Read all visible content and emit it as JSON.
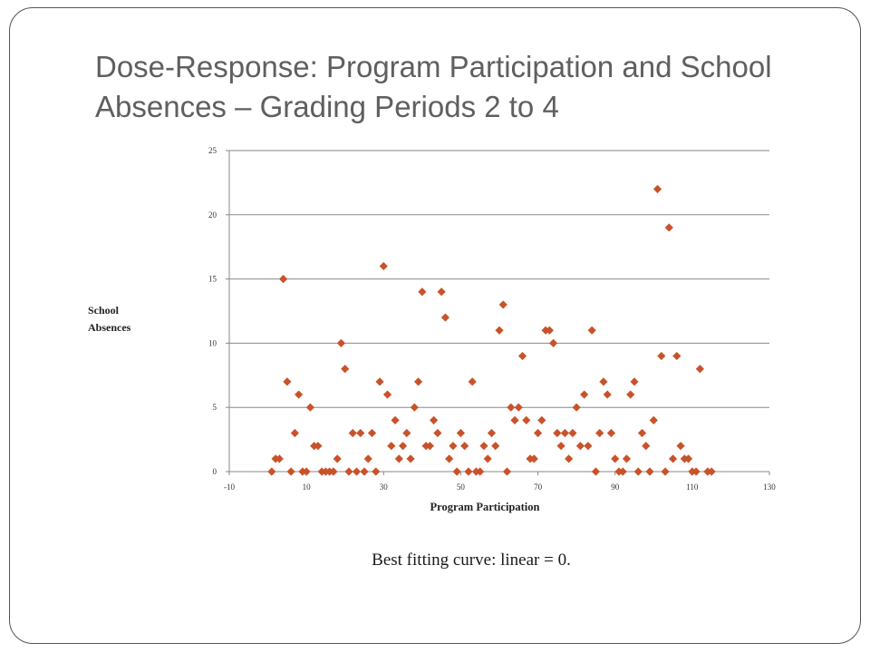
{
  "slide": {
    "title": "Dose-Response: Program Participation and School Absences – Grading Periods 2 to 4",
    "caption": "Best fitting curve: linear = 0."
  },
  "chart_data": {
    "type": "scatter",
    "title": "",
    "xlabel": "Program Participation",
    "ylabel": "School Absences",
    "xlim": [
      -10,
      130
    ],
    "ylim": [
      0,
      25
    ],
    "x_ticks": [
      -10,
      10,
      30,
      50,
      70,
      90,
      110,
      130
    ],
    "y_ticks": [
      0,
      5,
      10,
      15,
      20,
      25
    ],
    "grid": "horizontal",
    "legend": "none",
    "marker": "diamond",
    "marker_color": "#c8532a",
    "points": [
      [
        1,
        0
      ],
      [
        2,
        1
      ],
      [
        3,
        1
      ],
      [
        4,
        15
      ],
      [
        5,
        7
      ],
      [
        6,
        0
      ],
      [
        7,
        3
      ],
      [
        8,
        6
      ],
      [
        9,
        0
      ],
      [
        10,
        0
      ],
      [
        11,
        5
      ],
      [
        12,
        2
      ],
      [
        13,
        2
      ],
      [
        14,
        0
      ],
      [
        15,
        0
      ],
      [
        16,
        0
      ],
      [
        17,
        0
      ],
      [
        18,
        1
      ],
      [
        19,
        10
      ],
      [
        20,
        8
      ],
      [
        21,
        0
      ],
      [
        22,
        3
      ],
      [
        23,
        0
      ],
      [
        24,
        3
      ],
      [
        25,
        0
      ],
      [
        26,
        1
      ],
      [
        27,
        3
      ],
      [
        28,
        0
      ],
      [
        29,
        7
      ],
      [
        30,
        16
      ],
      [
        31,
        6
      ],
      [
        32,
        2
      ],
      [
        33,
        4
      ],
      [
        34,
        1
      ],
      [
        35,
        2
      ],
      [
        36,
        3
      ],
      [
        37,
        1
      ],
      [
        38,
        5
      ],
      [
        39,
        7
      ],
      [
        40,
        14
      ],
      [
        41,
        2
      ],
      [
        42,
        2
      ],
      [
        43,
        4
      ],
      [
        44,
        3
      ],
      [
        45,
        14
      ],
      [
        46,
        12
      ],
      [
        47,
        1
      ],
      [
        48,
        2
      ],
      [
        49,
        0
      ],
      [
        50,
        3
      ],
      [
        51,
        2
      ],
      [
        52,
        0
      ],
      [
        53,
        7
      ],
      [
        54,
        0
      ],
      [
        55,
        0
      ],
      [
        56,
        2
      ],
      [
        57,
        1
      ],
      [
        58,
        3
      ],
      [
        59,
        2
      ],
      [
        60,
        11
      ],
      [
        61,
        13
      ],
      [
        62,
        0
      ],
      [
        63,
        5
      ],
      [
        64,
        4
      ],
      [
        65,
        5
      ],
      [
        66,
        9
      ],
      [
        67,
        4
      ],
      [
        68,
        1
      ],
      [
        69,
        1
      ],
      [
        70,
        3
      ],
      [
        71,
        4
      ],
      [
        72,
        11
      ],
      [
        73,
        11
      ],
      [
        74,
        10
      ],
      [
        75,
        3
      ],
      [
        76,
        2
      ],
      [
        77,
        3
      ],
      [
        78,
        1
      ],
      [
        79,
        3
      ],
      [
        80,
        5
      ],
      [
        81,
        2
      ],
      [
        82,
        6
      ],
      [
        83,
        2
      ],
      [
        84,
        11
      ],
      [
        85,
        0
      ],
      [
        86,
        3
      ],
      [
        87,
        7
      ],
      [
        88,
        6
      ],
      [
        89,
        3
      ],
      [
        90,
        1
      ],
      [
        91,
        0
      ],
      [
        92,
        0
      ],
      [
        93,
        1
      ],
      [
        94,
        6
      ],
      [
        95,
        7
      ],
      [
        96,
        0
      ],
      [
        97,
        3
      ],
      [
        98,
        2
      ],
      [
        99,
        0
      ],
      [
        100,
        4
      ],
      [
        101,
        22
      ],
      [
        102,
        9
      ],
      [
        103,
        0
      ],
      [
        104,
        19
      ],
      [
        105,
        1
      ],
      [
        106,
        9
      ],
      [
        107,
        2
      ],
      [
        108,
        1
      ],
      [
        109,
        1
      ],
      [
        110,
        0
      ],
      [
        111,
        0
      ],
      [
        112,
        8
      ],
      [
        114,
        0
      ],
      [
        115,
        0
      ]
    ]
  }
}
